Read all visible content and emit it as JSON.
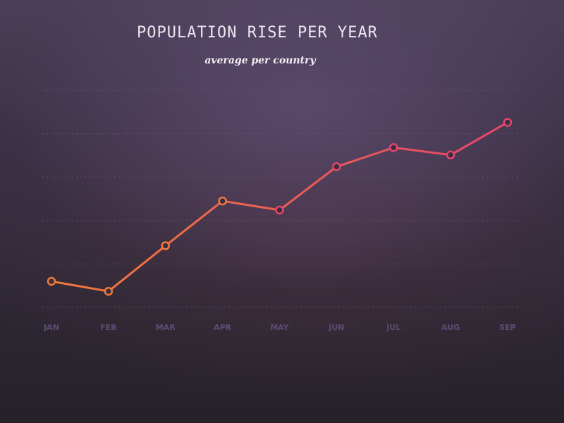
{
  "chart_data": {
    "type": "line",
    "title": "POPULATION RISE PER YEAR",
    "subtitle": "average per country",
    "xlabel": "",
    "ylabel": "",
    "categories": [
      "JAN",
      "FEB",
      "MAR",
      "APR",
      "MAY",
      "JUN",
      "JUL",
      "AUG",
      "SEP"
    ],
    "series": [
      {
        "values": [
          0.6,
          0.37,
          1.42,
          2.45,
          2.24,
          3.24,
          3.68,
          3.51,
          4.26
        ]
      }
    ],
    "ylim": [
      0,
      5
    ],
    "grid": true,
    "y_tick_labels_shown": false,
    "legend": "none",
    "marker": "hollow-circle",
    "colors": {
      "line_start": "#f07a3c",
      "line_end": "#e8456b",
      "marker_fill": "#3a2f40",
      "grid": "#6b5d78",
      "tick_label": "#5d4c74",
      "title": "#eae6ef",
      "subtitle": "#f4f0f6"
    }
  }
}
